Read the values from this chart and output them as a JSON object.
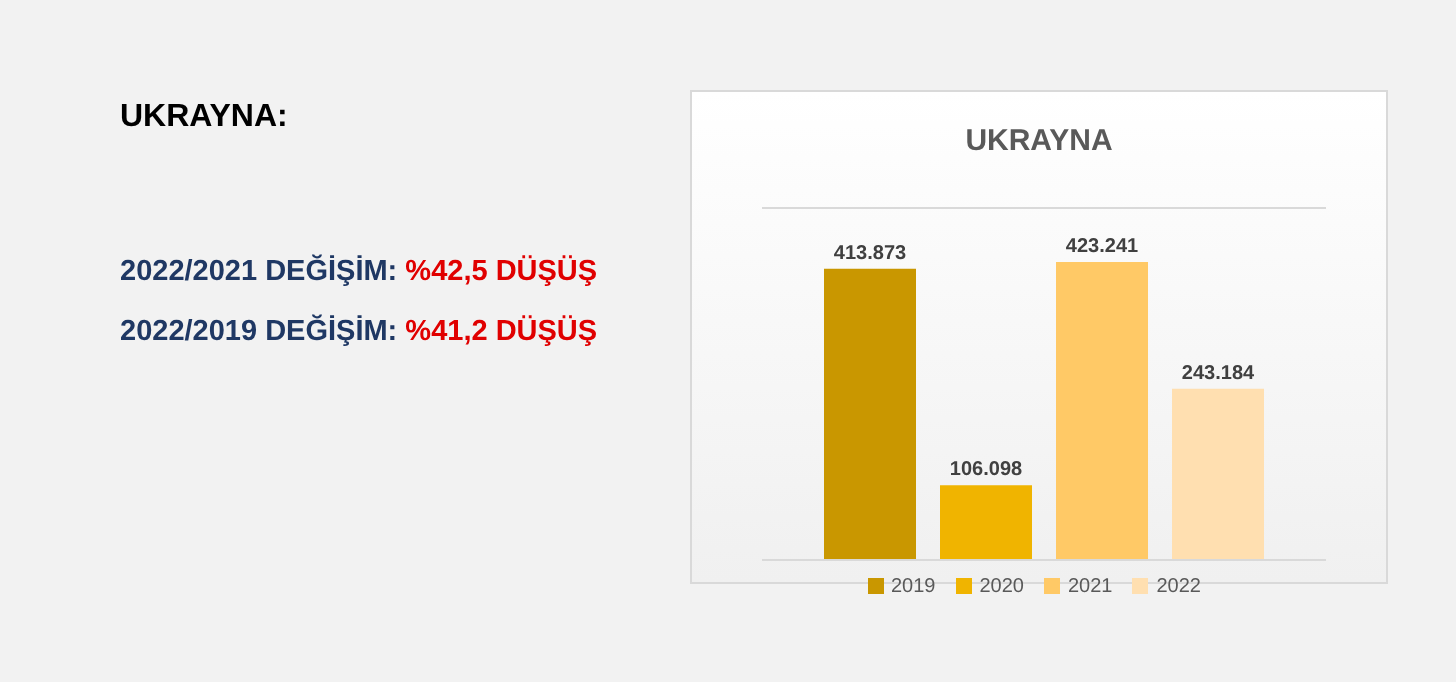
{
  "chart_data": {
    "type": "bar",
    "title": "UKRAYNA",
    "annotations": [
      "UKRAYNA:",
      "2022/2021 DEĞİŞİM:",
      "%42,5 DÜŞÜŞ",
      "2022/2019 DEĞİŞİM:",
      "%41,2 DÜŞÜŞ"
    ],
    "categories": [
      null
    ],
    "series": [
      {
        "name": "2019",
        "color": "#c99700",
        "values": [
          413873
        ],
        "value_labels": [
          "413.873"
        ]
      },
      {
        "name": "2020",
        "color": "#f0b400",
        "values": [
          106098
        ],
        "value_labels": [
          "106.098"
        ]
      },
      {
        "name": "2021",
        "color": "#ffc966",
        "values": [
          423241
        ],
        "value_labels": [
          "423.241"
        ]
      },
      {
        "name": "2022",
        "color": "#ffdfb0",
        "values": [
          243184
        ],
        "value_labels": [
          "243.184"
        ]
      }
    ],
    "ylim": [
      0,
      500000
    ],
    "grid": "y",
    "legend": "bottom"
  }
}
